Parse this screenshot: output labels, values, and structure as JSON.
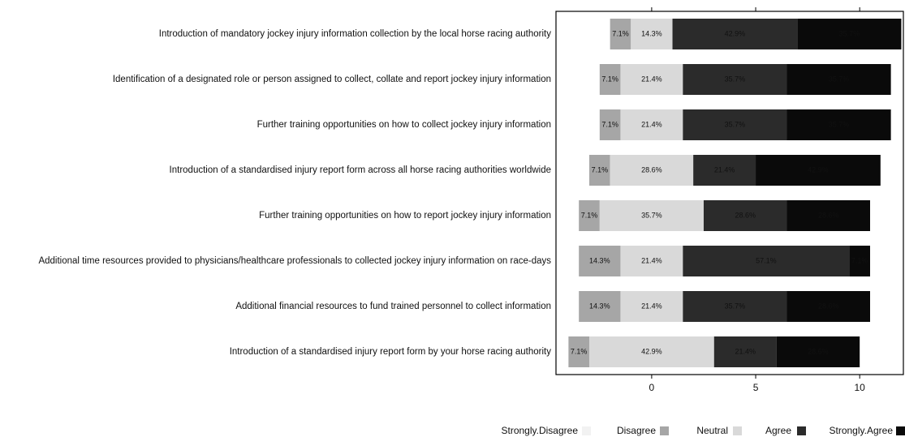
{
  "chart_data": {
    "type": "diverging_bar",
    "categories": [
      "Introduction of mandatory jockey injury information collection by the local horse racing authority",
      "Identification of a designated role or person assigned to collect, collate and report jockey injury information",
      "Further training opportunities on how to collect jockey injury information",
      "Introduction of a standardised injury report form across all horse racing authorities worldwide",
      "Further training opportunities on how to report jockey injury information",
      "Additional time resources provided to physicians/healthcare professionals to collected jockey injury information on race-days",
      "Additional financial resources to fund trained personnel to collect information",
      "Introduction of a standardised injury report form by your horse racing authority"
    ],
    "series": [
      {
        "name": "Strongly.Disagree",
        "color": "#f2f2f2",
        "values": [
          0,
          0,
          0,
          0,
          0,
          0,
          0,
          0
        ]
      },
      {
        "name": "Disagree",
        "color": "#a6a6a6",
        "values": [
          1,
          1,
          1,
          1,
          1,
          2,
          2,
          1
        ],
        "value_labels": [
          "7.1%",
          "7.1%",
          "7.1%",
          "7.1%",
          "7.1%",
          "14.3%",
          "14.3%",
          "7.1%"
        ]
      },
      {
        "name": "Neutral",
        "color": "#d9d9d9",
        "values": [
          2,
          3,
          3,
          4,
          5,
          3,
          3,
          6
        ],
        "value_labels": [
          "14.3%",
          "21.4%",
          "21.4%",
          "28.6%",
          "35.7%",
          "21.4%",
          "21.4%",
          "42.9%"
        ]
      },
      {
        "name": "Agree",
        "color": "#2b2b2b",
        "values": [
          6,
          5,
          5,
          3,
          4,
          8,
          5,
          3
        ],
        "value_labels": [
          "42.9%",
          "35.7%",
          "35.7%",
          "21.4%",
          "28.6%",
          "57.1%",
          "35.7%",
          "21.4%"
        ]
      },
      {
        "name": "Strongly.Agree",
        "color": "#0a0a0a",
        "values": [
          5,
          5,
          5,
          6,
          4,
          1,
          4,
          4
        ],
        "value_labels": [
          "35.7%",
          "35.7%",
          "35.7%",
          "42.9%",
          "28.6%",
          "7.1%",
          "28.6%",
          "28.6%"
        ]
      }
    ],
    "xlim": [
      -4.6,
      12.1
    ],
    "xticks": [
      0,
      5,
      10
    ],
    "legend": "bottom"
  }
}
